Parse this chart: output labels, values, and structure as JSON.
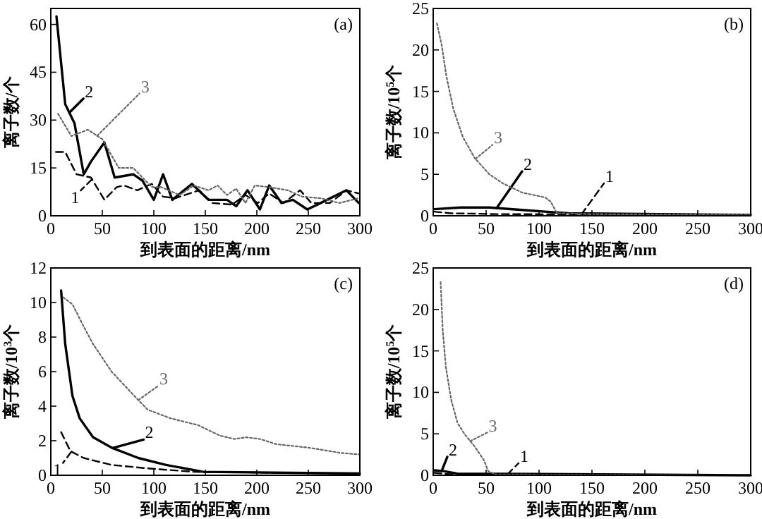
{
  "chart_data": [
    {
      "type": "line",
      "title": "(a)",
      "xlabel": "到表面的距离/nm",
      "ylabel": "离子数/个",
      "xlim": [
        0,
        300
      ],
      "ylim": [
        0,
        65
      ],
      "xticks": [
        0,
        50,
        100,
        150,
        200,
        250,
        300
      ],
      "yticks": [
        0,
        15,
        30,
        45,
        60
      ],
      "series": [
        {
          "name": "1",
          "color": "#000000",
          "line_style": "dashed",
          "x": [
            5,
            14,
            25,
            39,
            52,
            64,
            71,
            84,
            98,
            109,
            121,
            130,
            144,
            157,
            176,
            189,
            201,
            212,
            226,
            242,
            253,
            271,
            287,
            299
          ],
          "values": [
            20,
            20,
            13,
            12,
            5,
            9,
            9.5,
            8,
            10,
            6,
            5.5,
            6.5,
            8,
            4,
            3.5,
            6.5,
            4,
            7,
            4,
            8,
            4,
            4,
            8,
            7
          ]
        },
        {
          "name": "2",
          "color": "#000000",
          "line_style": "solid",
          "x": [
            5.5,
            14,
            23,
            32,
            39,
            52,
            62,
            80,
            89,
            100,
            109,
            118,
            137,
            153,
            171,
            180,
            191,
            203,
            212,
            224,
            235,
            249,
            262,
            287,
            299
          ],
          "values": [
            62.5,
            35,
            29,
            13,
            17,
            23,
            12,
            13,
            11,
            5,
            13,
            5,
            10,
            5,
            5,
            3,
            8,
            2,
            9.5,
            4,
            5,
            2,
            4,
            8,
            4
          ]
        },
        {
          "name": "3",
          "color": "#666666",
          "line_style": "dotted",
          "x": [
            7,
            20,
            36,
            50,
            66,
            80,
            98,
            107,
            125,
            139,
            153,
            162,
            171,
            180,
            189,
            198,
            212,
            230,
            244,
            262,
            280,
            299
          ],
          "values": [
            32,
            25,
            27,
            24,
            15,
            15,
            9,
            9,
            6.5,
            9.5,
            8,
            9.5,
            6.5,
            8.5,
            4,
            9.5,
            9,
            8,
            6,
            5.5,
            4,
            5.5
          ]
        }
      ]
    },
    {
      "type": "line",
      "title": "(b)",
      "xlabel": "到表面的距离/nm",
      "ylabel": "离子数/10$^{5}$个",
      "xlim": [
        0,
        300
      ],
      "ylim": [
        0,
        25
      ],
      "xticks": [
        0,
        50,
        100,
        150,
        200,
        250,
        300
      ],
      "yticks": [
        0,
        5,
        10,
        15,
        20,
        25
      ],
      "series": [
        {
          "name": "1",
          "color": "#000000",
          "line_style": "dashed",
          "x": [
            1,
            17,
            62,
            300
          ],
          "values": [
            0.5,
            0.3,
            0.2,
            0.1
          ]
        },
        {
          "name": "2",
          "color": "#000000",
          "line_style": "solid",
          "x": [
            1,
            26,
            53,
            84,
            128,
            300
          ],
          "values": [
            0.8,
            1,
            1,
            0.7,
            0.3,
            0.1
          ]
        },
        {
          "name": "3",
          "color": "#666666",
          "line_style": "dotted",
          "x": [
            3.5,
            8,
            12.5,
            19,
            28,
            39,
            53,
            66,
            84,
            106,
            111,
            117,
            151,
            300
          ],
          "values": [
            23.2,
            20.6,
            16.8,
            12.9,
            9.5,
            7,
            5,
            3.9,
            2.8,
            2.2,
            1.7,
            0.3,
            0.2,
            0.1
          ]
        }
      ]
    },
    {
      "type": "line",
      "title": "(c)",
      "xlabel": "到表面的距离/nm",
      "ylabel": "离子数/10$^{3}$个",
      "xlim": [
        0,
        300
      ],
      "ylim": [
        0,
        12
      ],
      "xticks": [
        0,
        50,
        100,
        150,
        200,
        250,
        300
      ],
      "yticks": [
        0,
        2,
        4,
        6,
        8,
        10,
        12
      ],
      "series": [
        {
          "name": "1",
          "color": "#000000",
          "line_style": "dashed",
          "x": [
            10,
            19,
            32,
            59,
            94,
            139,
            300
          ],
          "values": [
            2.5,
            1.4,
            1.0,
            0.6,
            0.4,
            0.2,
            0.1
          ]
        },
        {
          "name": "2",
          "color": "#000000",
          "line_style": "solid",
          "x": [
            10,
            14,
            21,
            28,
            41,
            59,
            85,
            112,
            148,
            300
          ],
          "values": [
            10.7,
            7.6,
            4.6,
            3.3,
            2.2,
            1.6,
            1.0,
            0.6,
            0.2,
            0.1
          ]
        },
        {
          "name": "3",
          "color": "#666666",
          "line_style": "dotted",
          "x": [
            12,
            21,
            32,
            41,
            59,
            81,
            94,
            116,
            143,
            164,
            178,
            190,
            203,
            219,
            250,
            281,
            300
          ],
          "values": [
            10.3,
            9.9,
            8.6,
            7.6,
            6.0,
            4.6,
            3.8,
            3.3,
            2.9,
            2.3,
            2.1,
            2.2,
            2.1,
            1.8,
            1.6,
            1.3,
            1.2
          ]
        }
      ]
    },
    {
      "type": "line",
      "title": "(d)",
      "xlabel": "到表面的距离/nm",
      "ylabel": "离子数/10$^{5}$个",
      "xlim": [
        0,
        300
      ],
      "ylim": [
        0,
        25
      ],
      "xticks": [
        0,
        50,
        100,
        150,
        200,
        250,
        300
      ],
      "yticks": [
        0,
        5,
        10,
        15,
        20,
        25
      ],
      "series": [
        {
          "name": "1",
          "color": "#000000",
          "line_style": "dashed",
          "x": [
            1,
            19,
            108
          ],
          "values": [
            0.3,
            0.1,
            0.1
          ]
        },
        {
          "name": "2",
          "color": "#000000",
          "line_style": "solid",
          "x": [
            1,
            10,
            23,
            300
          ],
          "values": [
            0.6,
            0.5,
            0.2,
            0
          ]
        },
        {
          "name": "3",
          "color": "#666666",
          "line_style": "dotted",
          "x": [
            7,
            9,
            12,
            17,
            23,
            30,
            39,
            48,
            52,
            59,
            300
          ],
          "values": [
            23.3,
            17.5,
            13,
            9.1,
            6.3,
            4.9,
            3.5,
            1.8,
            0.5,
            0.1,
            0
          ]
        }
      ]
    }
  ]
}
